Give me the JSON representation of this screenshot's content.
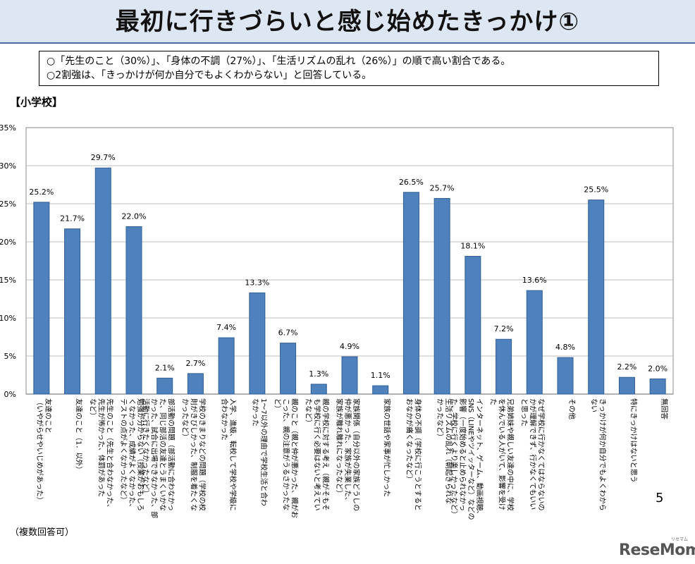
{
  "header": {
    "title": "最初に行きづらいと感じ始めたきっかけ①"
  },
  "summary": {
    "lines": [
      "○「先生のこと（30%）」、「身体の不調（27%）」、「生活リズムの乱れ（26%）」の順で高い割合である。",
      "○2割強は、「きっかけが何か自分でもよくわからない」と回答している。"
    ]
  },
  "section_label": "【小学校】",
  "footnote": "（複数回答可）",
  "page_number": "5",
  "logo": {
    "text": "ReseMom",
    "sub": "リセマム"
  },
  "colors": {
    "bar": "#4f81bd",
    "grid": "#bfbfbf",
    "title_band": "#dde6f3"
  },
  "chart_data": {
    "type": "bar",
    "ylim": [
      0,
      35
    ],
    "ytick_values": [
      0,
      5,
      10,
      15,
      20,
      25,
      30,
      35
    ],
    "ytick_labels": [
      "0%",
      "5%",
      "10%",
      "15%",
      "20%",
      "25%",
      "30%",
      "35%"
    ],
    "grid": true,
    "categories": [
      "友達のこと（いやがらせやいじめがあった）",
      "友達のこと（1．以外）",
      "先生のこと（先生と合わなかった、先生が怖かった、体罰があったなど）",
      "勉強が分からない（授業がおもしろくなかった、成績がよくなかった、テストの点がよくなかったなど）",
      "部活動の問題（部活動に合わなかった、同じ部活の友達とうまくいかなかった、試合に出場できなかった、部活動に行きたくなかったなど）",
      "学校のきまりなどの問題（学校の校則がきびしかった、制服を着たくなかったなど）",
      "入学、進級、転校して学校や学級に合わなかった",
      "1～7以外の理由で学校生活と合わなかった",
      "親のこと（親と仲が悪かった、親が怒った、親の注意がうるさかったなど）",
      "親の学校に対する考え（親がそもそも学校に行く必要はないと考えていたなど）",
      "家族関係（自分以外の家族どうしの仲が悪かった、家族が失業した、家族が離れ離れになったなど）",
      "家族の世話や家事が忙しかった",
      "身体の不調（学校に行こうとするとおなかが痛くなったなど）",
      "生活リズムの乱れ（朝起きられなかったなど）",
      "インターネット、ゲーム、動画視聴、SNS（LINEやツイッターなど）などの影響（一度始めると止められなかった、学校に行くより楽しかったなど）",
      "兄弟姉妹や親しい友達の中に、学校を休んでいる人がいて、影響を受けた",
      "なぜ学校に行かなくてはならないのかが理解できず、行かなくてもいいと思った",
      "その他",
      "きっかけが何か自分でもよくわからない",
      "特にきっかけはないと思う",
      "無回答"
    ],
    "values": [
      25.2,
      21.7,
      29.7,
      22.0,
      2.1,
      2.7,
      7.4,
      13.3,
      6.7,
      1.3,
      4.9,
      1.1,
      26.5,
      25.7,
      18.1,
      7.2,
      13.6,
      4.8,
      25.5,
      2.2,
      2.0
    ],
    "labels": [
      "25.2%",
      "21.7%",
      "29.7%",
      "22.0%",
      "2.1%",
      "2.7%",
      "7.4%",
      "13.3%",
      "6.7%",
      "1.3%",
      "4.9%",
      "1.1%",
      "26.5%",
      "25.7%",
      "18.1%",
      "7.2%",
      "13.6%",
      "4.8%",
      "25.5%",
      "2.2%",
      "2.0%"
    ],
    "label_lines": [
      [
        "友達のこと",
        "（いやがらせやいじめがあった）"
      ],
      [
        "友達のこと（1．以外）"
      ],
      [
        "先生のこと（先生と合わなかった、",
        "先生が怖かった、体罰があった",
        "など）"
      ],
      [
        "勉強が分からない（授業がおもしろ",
        "くなかった、成績がよくなかった、",
        "テストの点がよくなかったなど）"
      ],
      [
        "部活動の問題（部活動に合わなかっ",
        "た、同じ部活の友達とうまくいかな",
        "かった、試合に出場できなかった、部",
        "活動に行きたくなかったなど）"
      ],
      [
        "学校のきまりなどの問題（学校の校",
        "則がきびしかった、制服を着たくな",
        "かったなど）"
      ],
      [
        "入学、進級、転校して学校や学級に",
        "合わなかった"
      ],
      [
        "1～7以外の理由で学校生活と合わ",
        "なかった"
      ],
      [
        "親のこと（親と仲が悪かった、親がお",
        "こった、親の注意がうるさかったな",
        "ど）"
      ],
      [
        "親の学校に対する考え（親がそもそ",
        "も学校に行く必要はないと考えてい",
        "たなど）"
      ],
      [
        "家族関係（自分以外の家族どうしの",
        "仲が悪かった、家族が失業した、",
        "家族が離れ離れになったなど）"
      ],
      [
        "家族の世話や家事が忙しかった"
      ],
      [
        "身体の不調（学校に行こうとすると",
        "おなかが痛くなったなど）"
      ],
      [
        "生活リズムの乱れ（朝起きられな",
        "かったなど）"
      ],
      [
        "インターネット、ゲーム、動画視聴、",
        "SNS（LINEやツイッターなど）などの",
        "影響（一度始めると止められなかっ",
        "た、学校に行くより楽しかったなど）"
      ],
      [
        "兄弟姉妹や親しい友達の中に、学校",
        "を休んでいる人がいて、影響を受け",
        "た"
      ],
      [
        "なぜ学校に行かなくてはならないの",
        "かが理解できず、行かなくてもいい",
        "と思った"
      ],
      [
        "その他"
      ],
      [
        "きっかけが何か自分でもよくわから",
        "ない"
      ],
      [
        "特にきっかけはないと思う"
      ],
      [
        "無回答"
      ]
    ]
  }
}
